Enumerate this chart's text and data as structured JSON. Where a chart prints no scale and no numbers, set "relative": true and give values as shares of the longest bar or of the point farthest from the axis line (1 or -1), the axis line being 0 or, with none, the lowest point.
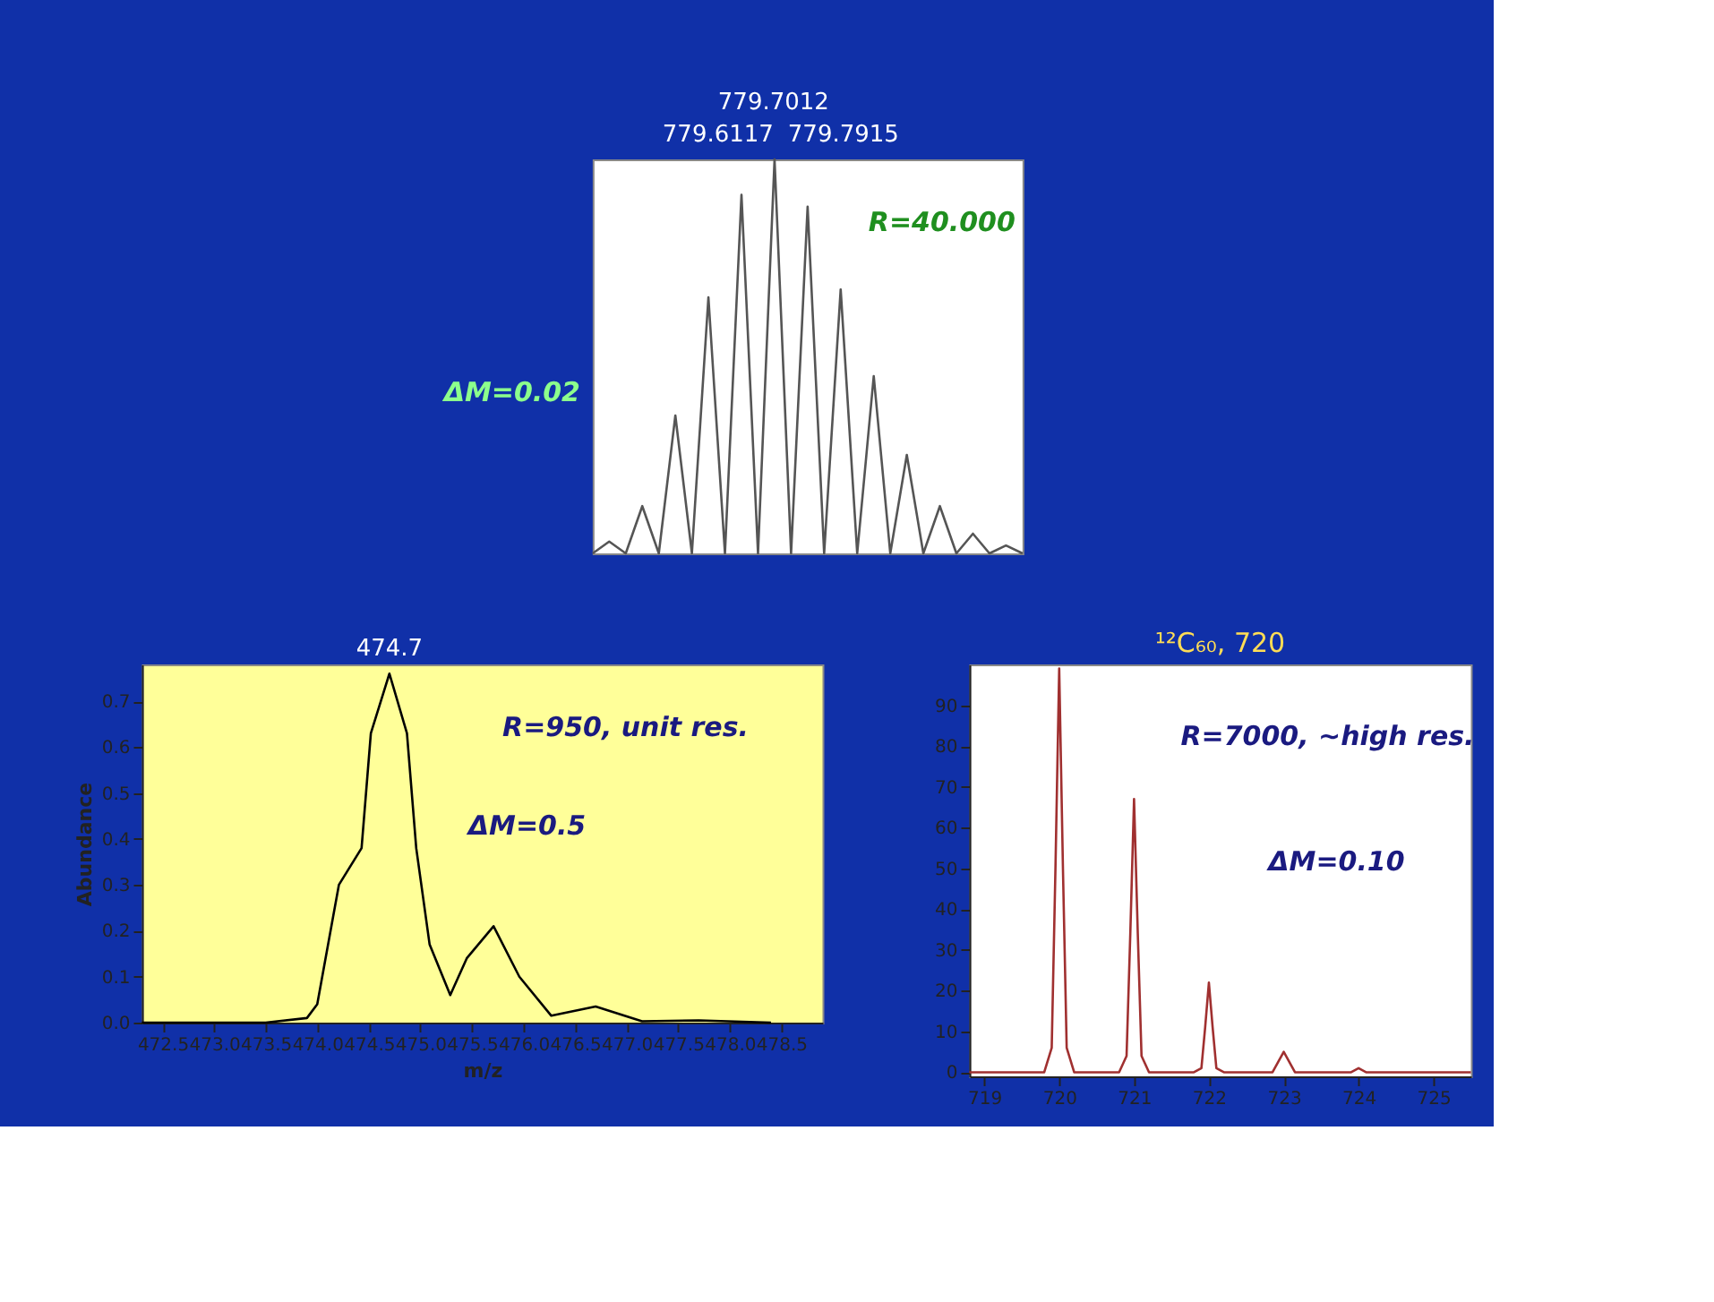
{
  "chart_data": [
    {
      "type": "line",
      "relative": true,
      "color": "#555555",
      "categories": [
        null,
        null,
        null,
        null,
        null,
        null,
        null,
        null,
        null,
        null,
        null,
        null,
        null,
        null,
        null,
        null,
        null,
        null,
        null,
        null,
        null,
        null,
        null,
        null,
        null,
        null,
        null
      ],
      "values": [
        0,
        0.03,
        0,
        0.12,
        0,
        0.35,
        0,
        0.65,
        0,
        0.91,
        0,
        1,
        0,
        0.88,
        0,
        0.67,
        0,
        0.45,
        0,
        0.25,
        0,
        0.12,
        0,
        0.05,
        0,
        0.02,
        0
      ],
      "annotations": [
        "779.7012",
        "779.6117",
        "779.7915",
        "R=40.000",
        "ΔM=0.02"
      ]
    },
    {
      "type": "line",
      "color": "#000000",
      "xlabel": "m/z",
      "ylabel": "Abundance",
      "x": [
        472.3,
        473.5,
        473.9,
        474.0,
        474.21,
        474.43,
        474.52,
        474.7,
        474.87,
        474.96,
        475.09,
        475.29,
        475.45,
        475.71,
        475.96,
        476.27,
        476.7,
        477.15,
        477.7,
        478.4
      ],
      "values": [
        0,
        0,
        0.01,
        0.04,
        0.3,
        0.38,
        0.63,
        0.76,
        0.63,
        0.38,
        0.17,
        0.06,
        0.14,
        0.21,
        0.1,
        0.015,
        0.035,
        0.003,
        0.005,
        0
      ],
      "xlim": [
        472.3,
        478.9
      ],
      "xticks": [
        472.5,
        {
          "value": 473,
          "label": "473.0"
        },
        473.5,
        {
          "value": 474,
          "label": "474.0"
        },
        474.5,
        {
          "value": 475,
          "label": "475.0"
        },
        475.5,
        {
          "value": 476,
          "label": "476.0"
        },
        476.5,
        {
          "value": 477,
          "label": "477.0"
        },
        477.5,
        {
          "value": 478,
          "label": "478.0"
        },
        478.5
      ],
      "ylim": [
        0,
        0.78
      ],
      "yticks": [
        {
          "value": 0,
          "label": "0.0"
        },
        0.1,
        0.2,
        0.3,
        0.4,
        0.5,
        0.6,
        0.7
      ],
      "annotations": [
        {
          "text": "474.7",
          "x": 474.7,
          "y": 0.76
        },
        "R=950, unit res.",
        "ΔM=0.5"
      ]
    },
    {
      "type": "line",
      "color": "#a03030",
      "title": "¹²C₆₀, 720",
      "x": [
        718.8,
        719.8,
        719.9,
        719.95,
        720,
        720.05,
        720.1,
        720.2,
        720.8,
        720.9,
        720.95,
        721,
        721.05,
        721.1,
        721.2,
        721.8,
        721.9,
        721.95,
        722,
        722.05,
        722.1,
        722.2,
        722.85,
        723,
        723.15,
        723.9,
        724,
        724.1,
        725.5
      ],
      "values": [
        0,
        0,
        6,
        50,
        99,
        50,
        6,
        0,
        0,
        4,
        34,
        67,
        34,
        4,
        0,
        0,
        1,
        11,
        22,
        11,
        1,
        0,
        0,
        5,
        0,
        0,
        1,
        0,
        0
      ],
      "xlim": [
        718.8,
        725.5
      ],
      "xticks": [
        719,
        720,
        721,
        722,
        723,
        724,
        725
      ],
      "ylim": [
        -1,
        100
      ],
      "yticks": [
        0,
        10,
        20,
        30,
        40,
        50,
        60,
        70,
        80,
        90
      ],
      "annotations": [
        "R=7000, ~high res.",
        "ΔM=0.10"
      ]
    }
  ]
}
